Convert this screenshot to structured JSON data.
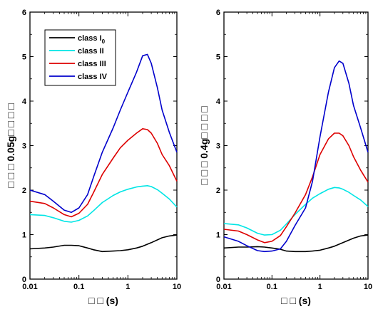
{
  "chart_data": [
    {
      "type": "line",
      "xscale": "log",
      "xlim": [
        0.01,
        10
      ],
      "ylim": [
        0,
        6
      ],
      "xticks": [
        "0.01",
        "0.1",
        "1",
        "10"
      ],
      "yticks": [
        "0",
        "1",
        "2",
        "3",
        "4",
        "5",
        "6"
      ],
      "xlabel": "□ □ (s)",
      "ylabel": "□ □ □ 0.05g□ □ □ □",
      "legend": {
        "position": "top-left",
        "entries": [
          {
            "label": "class I",
            "sub": "0",
            "color": "#000000"
          },
          {
            "label": "class II",
            "color": "#00e5e5"
          },
          {
            "label": "class III",
            "color": "#dd0000"
          },
          {
            "label": "class IV",
            "color": "#0000cc"
          }
        ]
      },
      "series": [
        {
          "name": "class I0",
          "color": "#000000",
          "x": [
            0.01,
            0.02,
            0.03,
            0.05,
            0.07,
            0.1,
            0.15,
            0.2,
            0.3,
            0.5,
            0.7,
            1,
            1.5,
            2,
            3,
            5,
            7,
            10
          ],
          "y": [
            0.68,
            0.7,
            0.72,
            0.76,
            0.76,
            0.75,
            0.7,
            0.66,
            0.62,
            0.63,
            0.64,
            0.66,
            0.7,
            0.74,
            0.82,
            0.93,
            0.97,
            0.99
          ]
        },
        {
          "name": "class II",
          "color": "#00e5e5",
          "x": [
            0.01,
            0.02,
            0.03,
            0.05,
            0.07,
            0.1,
            0.15,
            0.2,
            0.3,
            0.5,
            0.7,
            1,
            1.5,
            2,
            2.5,
            3,
            4,
            5,
            7,
            10
          ],
          "y": [
            1.45,
            1.43,
            1.38,
            1.3,
            1.28,
            1.32,
            1.42,
            1.54,
            1.72,
            1.88,
            1.96,
            2.02,
            2.07,
            2.09,
            2.1,
            2.08,
            2.01,
            1.93,
            1.8,
            1.62
          ]
        },
        {
          "name": "class III",
          "color": "#dd0000",
          "x": [
            0.01,
            0.02,
            0.03,
            0.05,
            0.07,
            0.1,
            0.15,
            0.2,
            0.3,
            0.5,
            0.7,
            1,
            1.5,
            2,
            2.5,
            3,
            4,
            5,
            7,
            10
          ],
          "y": [
            1.75,
            1.7,
            1.6,
            1.45,
            1.4,
            1.48,
            1.68,
            1.95,
            2.35,
            2.72,
            2.95,
            3.12,
            3.28,
            3.38,
            3.36,
            3.28,
            3.05,
            2.8,
            2.55,
            2.2
          ]
        },
        {
          "name": "class IV",
          "color": "#0000cc",
          "x": [
            0.01,
            0.02,
            0.03,
            0.05,
            0.07,
            0.1,
            0.15,
            0.2,
            0.3,
            0.5,
            0.7,
            1,
            1.5,
            2,
            2.5,
            3,
            4,
            5,
            7,
            10
          ],
          "y": [
            2.0,
            1.9,
            1.75,
            1.55,
            1.5,
            1.6,
            1.9,
            2.3,
            2.85,
            3.4,
            3.8,
            4.2,
            4.65,
            5.02,
            5.05,
            4.85,
            4.3,
            3.8,
            3.3,
            2.85
          ]
        }
      ]
    },
    {
      "type": "line",
      "xscale": "log",
      "xlim": [
        0.01,
        10
      ],
      "ylim": [
        0,
        6
      ],
      "xticks": [
        "0.01",
        "0.1",
        "1",
        "10"
      ],
      "yticks": [
        "0",
        "1",
        "2",
        "3",
        "4",
        "5",
        "6"
      ],
      "xlabel": "□ □ (s)",
      "ylabel": "□ □ □ 0.4g□ □ □ □",
      "series": [
        {
          "name": "class I0",
          "color": "#000000",
          "x": [
            0.01,
            0.02,
            0.03,
            0.05,
            0.07,
            0.1,
            0.15,
            0.2,
            0.3,
            0.5,
            0.7,
            1,
            1.5,
            2,
            3,
            5,
            7,
            10
          ],
          "y": [
            0.7,
            0.72,
            0.72,
            0.73,
            0.72,
            0.7,
            0.67,
            0.63,
            0.62,
            0.62,
            0.63,
            0.65,
            0.7,
            0.74,
            0.82,
            0.92,
            0.97,
            0.99
          ]
        },
        {
          "name": "class II",
          "color": "#00e5e5",
          "x": [
            0.01,
            0.02,
            0.03,
            0.05,
            0.07,
            0.1,
            0.15,
            0.2,
            0.3,
            0.5,
            0.7,
            1,
            1.5,
            2,
            2.5,
            3,
            4,
            5,
            7,
            10
          ],
          "y": [
            1.25,
            1.22,
            1.15,
            1.03,
            0.99,
            1.0,
            1.1,
            1.24,
            1.45,
            1.68,
            1.82,
            1.92,
            2.02,
            2.06,
            2.05,
            2.02,
            1.95,
            1.88,
            1.78,
            1.63
          ]
        },
        {
          "name": "class III",
          "color": "#dd0000",
          "x": [
            0.01,
            0.02,
            0.03,
            0.05,
            0.07,
            0.1,
            0.15,
            0.2,
            0.3,
            0.5,
            0.7,
            1,
            1.5,
            2,
            2.5,
            3,
            4,
            5,
            7,
            10
          ],
          "y": [
            1.12,
            1.08,
            1.0,
            0.88,
            0.82,
            0.85,
            0.98,
            1.18,
            1.48,
            1.9,
            2.3,
            2.8,
            3.15,
            3.28,
            3.28,
            3.22,
            3.0,
            2.75,
            2.45,
            2.18
          ]
        },
        {
          "name": "class IV",
          "color": "#0000cc",
          "x": [
            0.01,
            0.02,
            0.03,
            0.05,
            0.07,
            0.1,
            0.15,
            0.2,
            0.3,
            0.5,
            0.7,
            1,
            1.5,
            2,
            2.5,
            3,
            4,
            5,
            7,
            10
          ],
          "y": [
            0.95,
            0.85,
            0.75,
            0.64,
            0.62,
            0.63,
            0.68,
            0.85,
            1.2,
            1.6,
            2.2,
            3.2,
            4.2,
            4.75,
            4.9,
            4.85,
            4.4,
            3.9,
            3.4,
            2.85
          ]
        }
      ]
    }
  ]
}
